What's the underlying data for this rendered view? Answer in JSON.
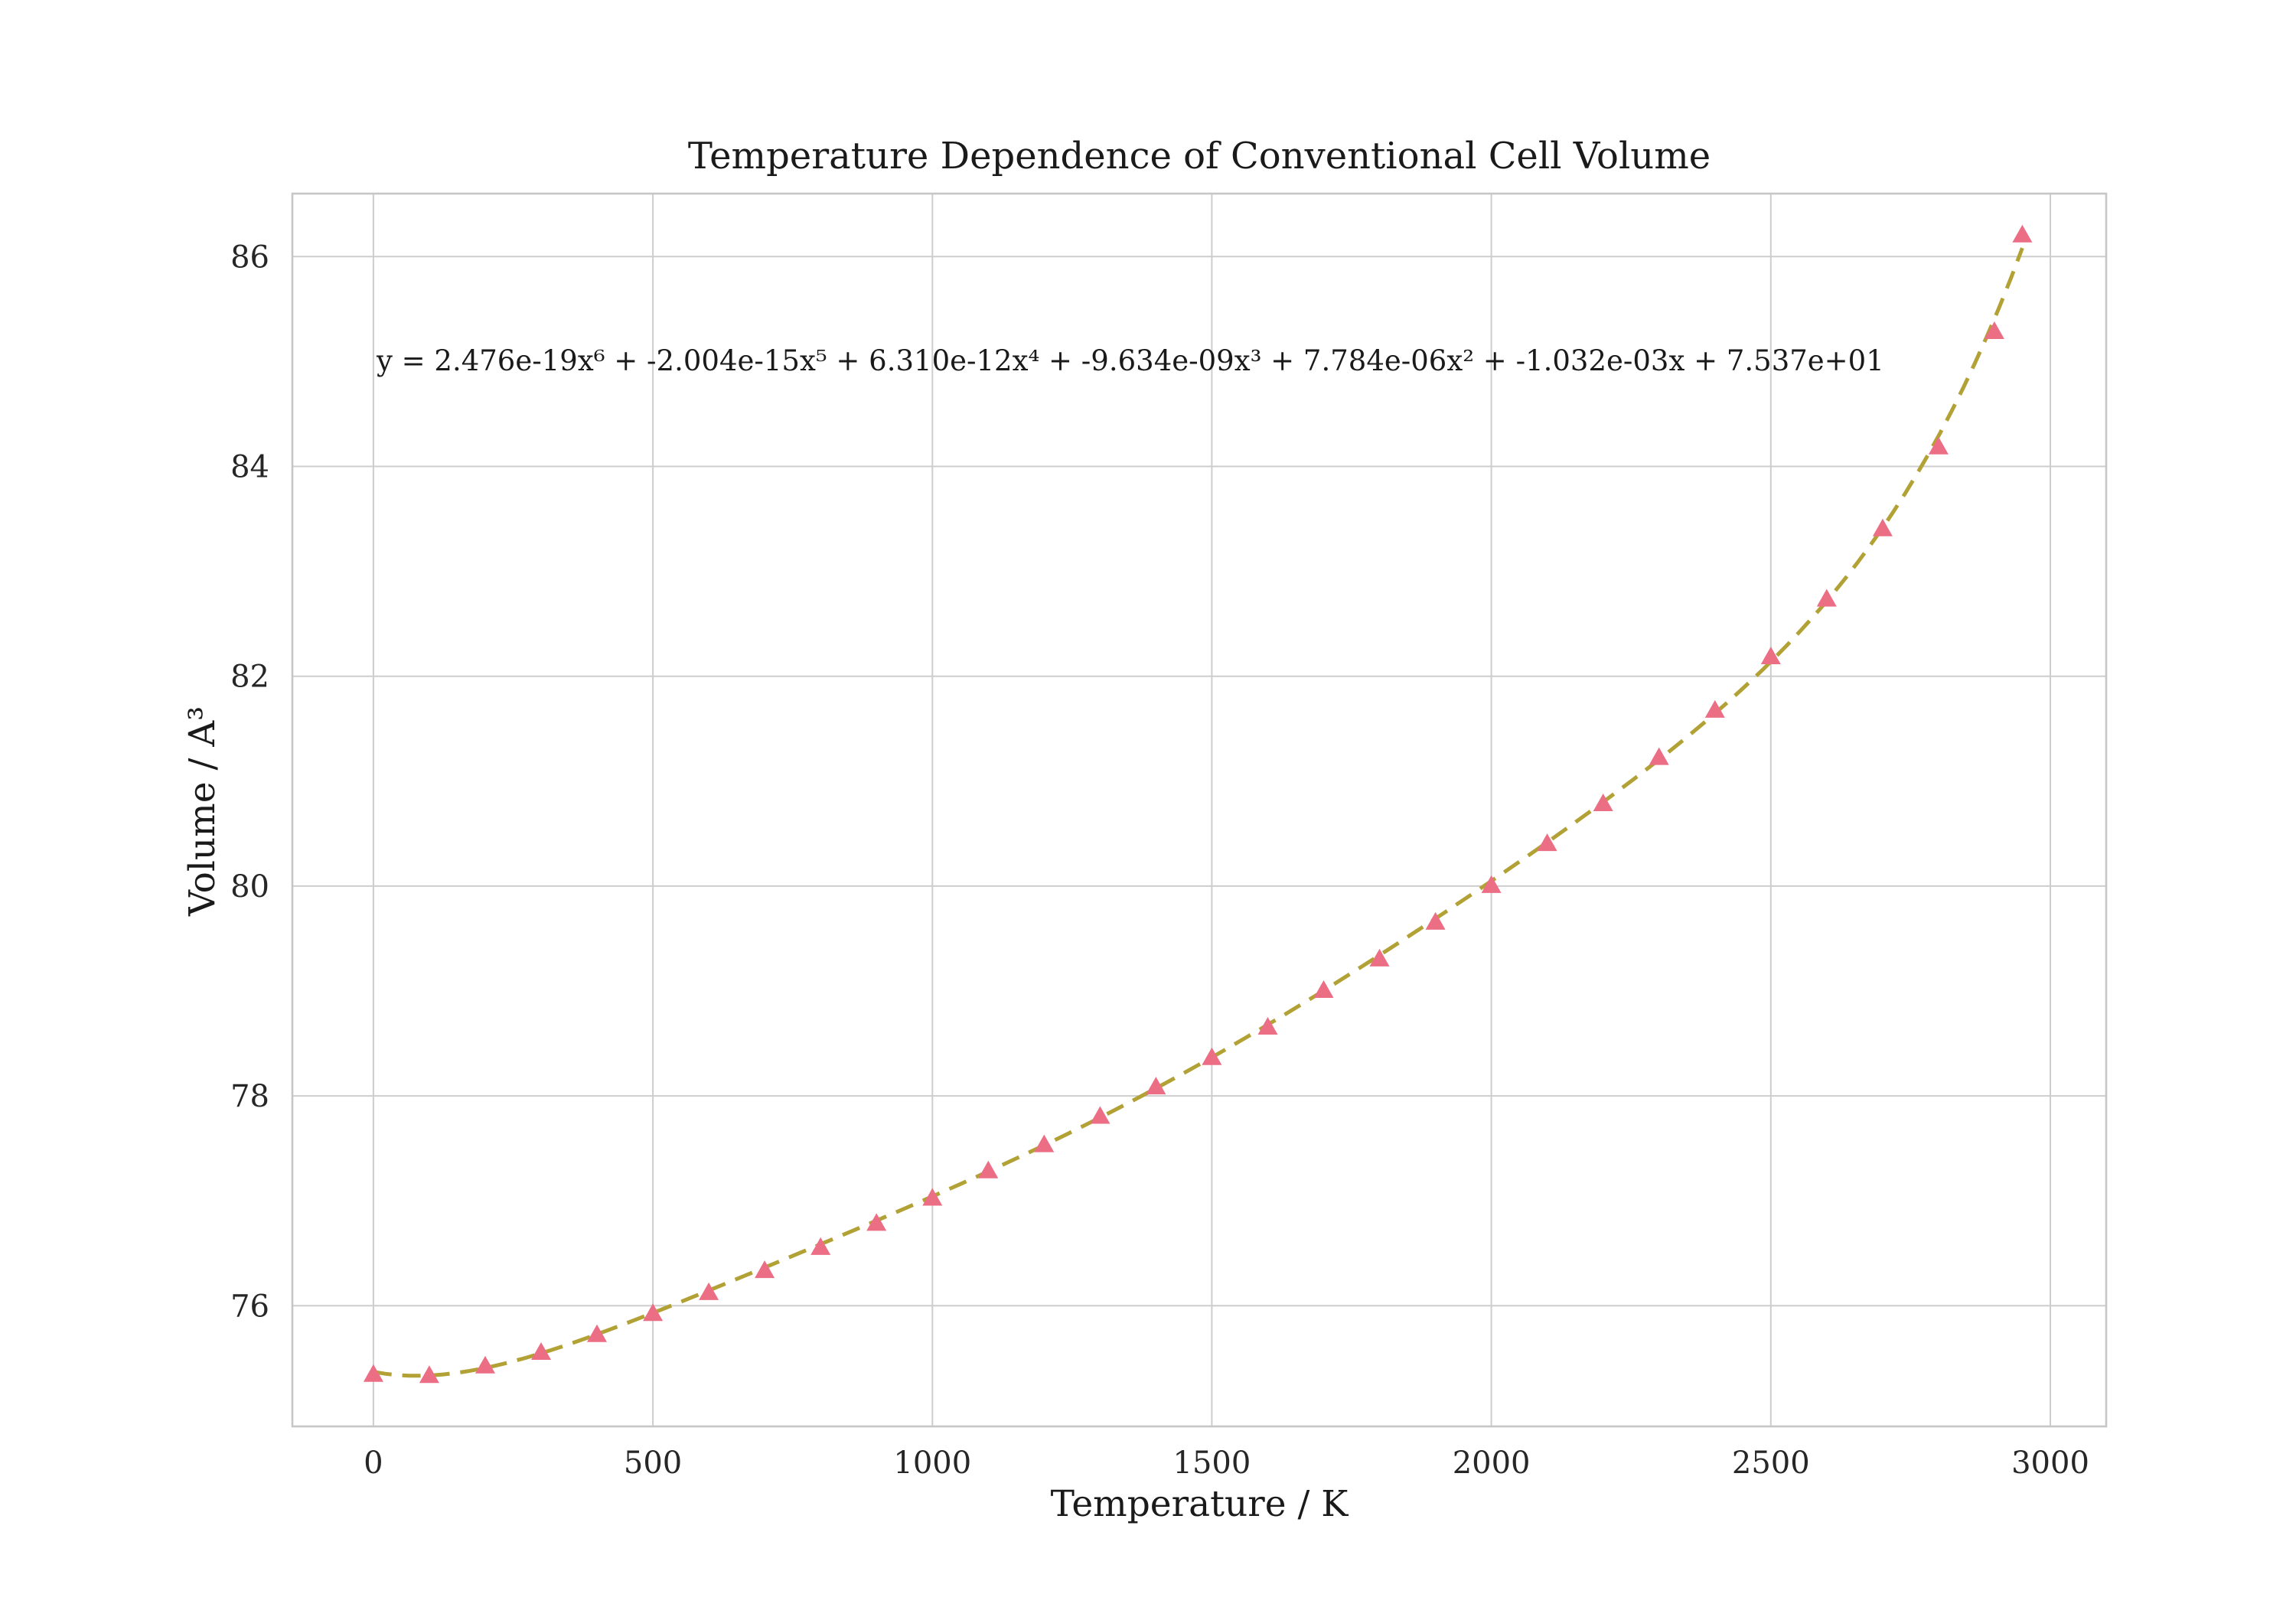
{
  "chart_data": {
    "type": "scatter",
    "title": "Temperature Dependence of Conventional Cell Volume",
    "xlabel": "Temperature / K",
    "ylabel": "Volume / A³",
    "annotation": "y = 2.476e-19x⁶ + -2.004e-15x⁵ + 6.310e-12x⁴ + -9.634e-09x³ + 7.784e-06x² + -1.032e-03x + 7.537e+01",
    "x": [
      0,
      100,
      200,
      300,
      400,
      500,
      600,
      700,
      800,
      900,
      1000,
      1100,
      1200,
      1300,
      1400,
      1500,
      1600,
      1700,
      1800,
      1900,
      2000,
      2100,
      2200,
      2300,
      2400,
      2500,
      2600,
      2700,
      2800,
      2900,
      2950
    ],
    "y": [
      75.34,
      75.33,
      75.42,
      75.55,
      75.72,
      75.92,
      76.12,
      76.33,
      76.55,
      76.78,
      77.02,
      77.28,
      77.53,
      77.8,
      78.08,
      78.36,
      78.65,
      79.0,
      79.3,
      79.65,
      80.0,
      80.4,
      80.78,
      81.22,
      81.67,
      82.18,
      82.73,
      83.4,
      84.18,
      85.28,
      86.2
    ],
    "fit": {
      "type": "polynomial",
      "degree": 6,
      "coefficients": [
        2.476e-19,
        -2.004e-15,
        6.31e-12,
        -9.634e-09,
        7.784e-06,
        -0.001032,
        75.37
      ],
      "line_style": "dashed"
    },
    "x_ticks": [
      0,
      500,
      1000,
      1500,
      2000,
      2500,
      3000
    ],
    "y_ticks": [
      76,
      78,
      80,
      82,
      84,
      86
    ],
    "xlim": [
      -145,
      3100
    ],
    "ylim": [
      74.85,
      86.6
    ],
    "grid": true,
    "legend": "none",
    "marker": "triangle-up",
    "colors": {
      "marker": "#ec6e85",
      "fit_line": "#b2a135",
      "grid": "#cdcdcd",
      "frame": "#c6c6c6",
      "text": "#262626"
    }
  }
}
